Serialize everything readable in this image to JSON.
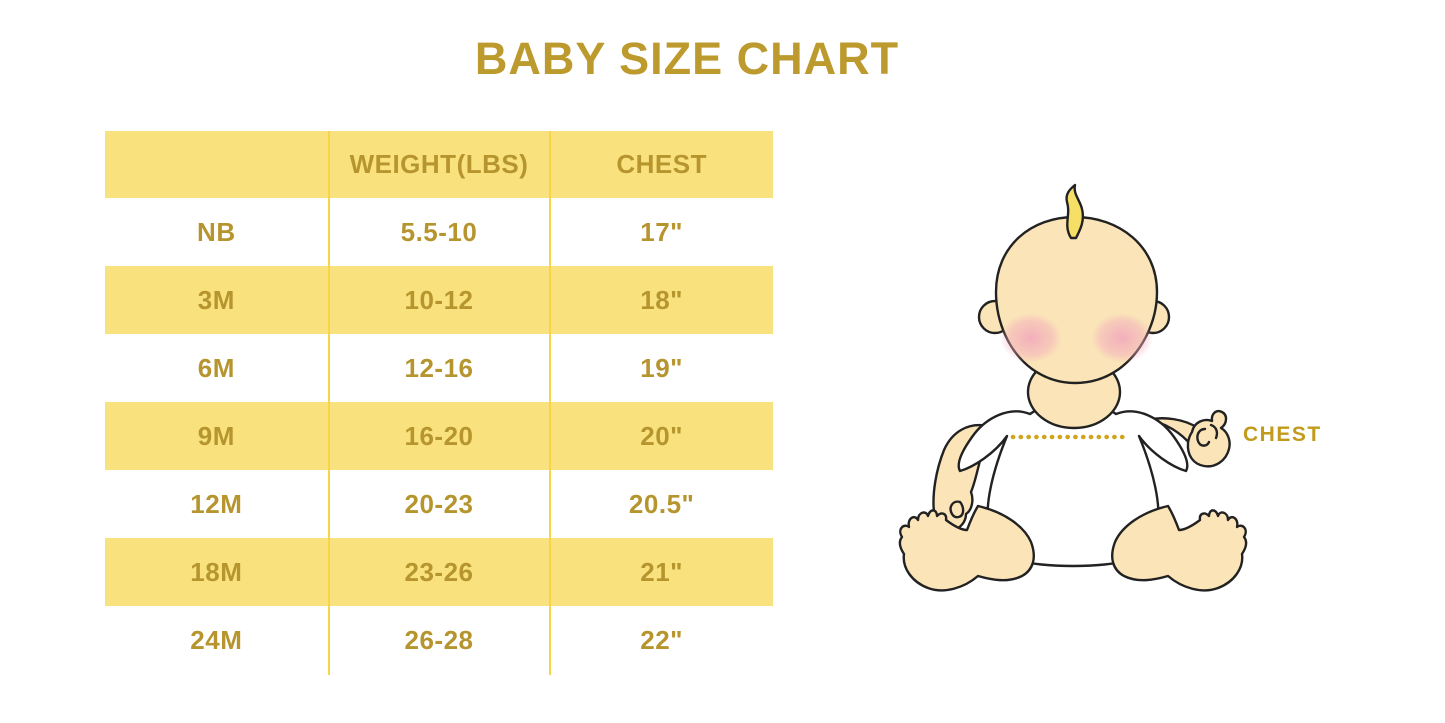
{
  "chart_data": {
    "type": "table",
    "title": "BABY SIZE CHART",
    "columns": [
      "",
      "WEIGHT(LBS)",
      "CHEST"
    ],
    "rows": [
      [
        "NB",
        "5.5-10",
        "17\""
      ],
      [
        "3M",
        "10-12",
        "18\""
      ],
      [
        "6M",
        "12-16",
        "19\""
      ],
      [
        "9M",
        "16-20",
        "20\""
      ],
      [
        "12M",
        "20-23",
        "20.5\""
      ],
      [
        "18M",
        "23-26",
        "21\""
      ],
      [
        "24M",
        "26-28",
        "22\""
      ]
    ],
    "banded_rows_note": "header row and rows 3M, 9M, 18M have yellow background"
  },
  "illustration": {
    "type": "sitting-baby-cartoon",
    "chest_label": "CHEST",
    "measure_line": "dotted line across baby chest"
  },
  "colors": {
    "title_gold": "#BD9A2E",
    "table_text_gold": "#B6952E",
    "row_band_yellow": "#F9E27E",
    "divider_yellow": "#F7D44A",
    "dotted_line_gold": "#D2A31C",
    "chest_label_gold": "#C29B1D",
    "baby_skin": "#FBE5B8",
    "baby_blush": "#F2A9BC",
    "baby_hair": "#F6DF66",
    "outline_black": "#222222",
    "shirt_white": "#FFFFFF",
    "background": "#FFFFFF"
  }
}
